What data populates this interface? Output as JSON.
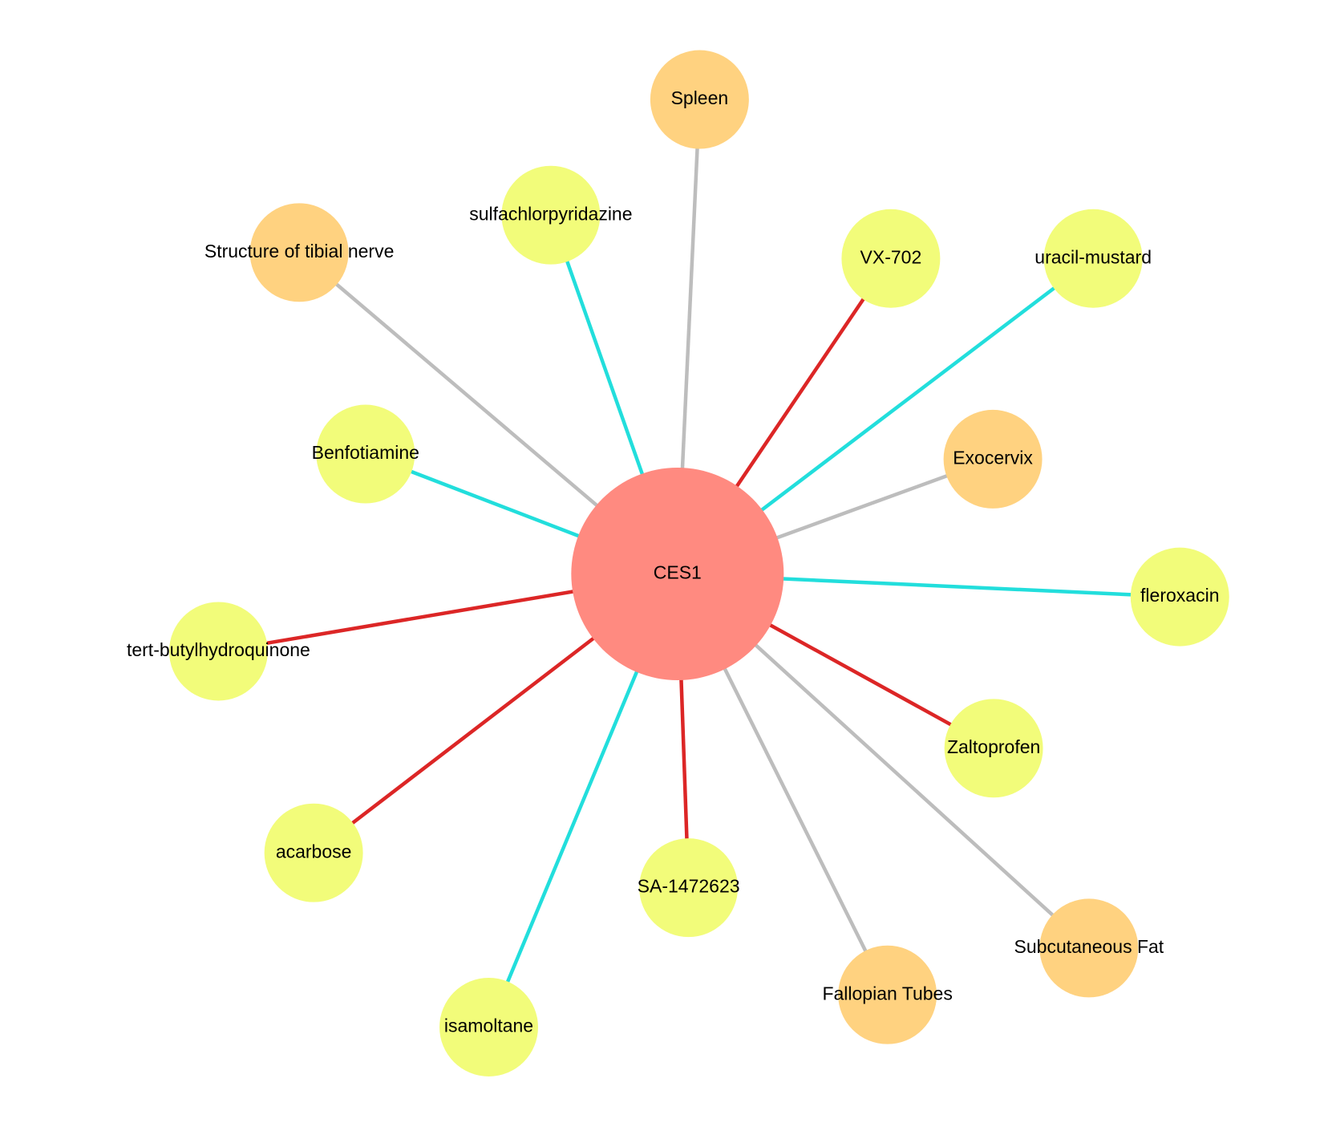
{
  "nodes": [
    {
      "label": "CES1"
    },
    {
      "label": "Spleen"
    },
    {
      "label": "sulfachlorpyridazine"
    },
    {
      "label": "Structure of tibial nerve"
    },
    {
      "label": "VX-702"
    },
    {
      "label": "uracil-mustard"
    },
    {
      "label": "Benfotiamine"
    },
    {
      "label": "Exocervix"
    },
    {
      "label": "fleroxacin"
    },
    {
      "label": "tert-butylhydroquinone"
    },
    {
      "label": "Zaltoprofen"
    },
    {
      "label": "acarbose"
    },
    {
      "label": "SA-1472623"
    },
    {
      "label": "Subcutaneous Fat"
    },
    {
      "label": "Fallopian Tubes"
    },
    {
      "label": "isamoltane"
    }
  ]
}
